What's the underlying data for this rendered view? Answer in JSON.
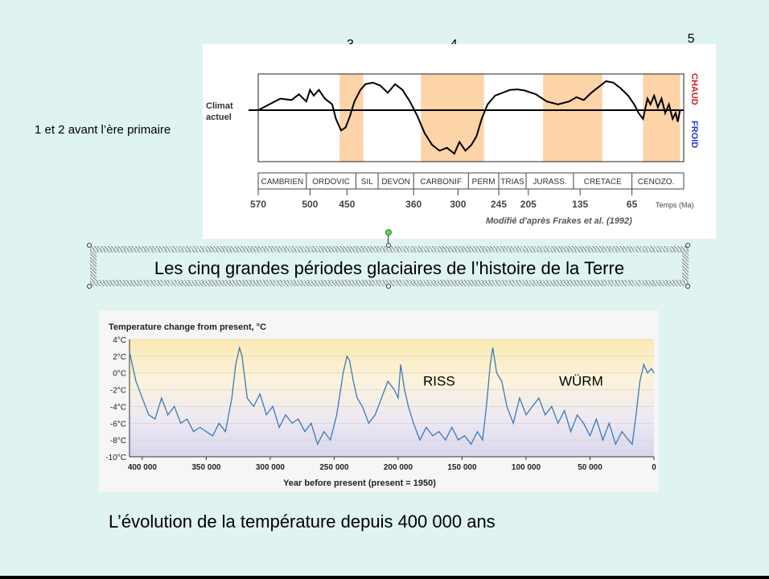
{
  "side_note": "1 et 2 avant l’ère primaire",
  "caption_top": "Les cinq grandes périodes glaciaires de l’histoire de la Terre",
  "caption_bottom": "L’évolution de la température depuis 400 000 ans",
  "periods_markers": [
    {
      "label": "3",
      "start_ma": 460,
      "end_ma": 430
    },
    {
      "label": "4",
      "start_ma": 350,
      "end_ma": 260
    },
    {
      "label": "5",
      "start_ma": 4,
      "end_ma": -35
    }
  ],
  "colors": {
    "background": "#dff3f1",
    "glacial_band": "#fdd3a8",
    "chaud": "#d11f2a",
    "froid": "#2a37c9",
    "temp_line": "#3a7ab8"
  },
  "chart_data": [
    {
      "type": "line",
      "title": "",
      "ylabel_left": "Climat actuel",
      "xlabel": "Temps (Ma)",
      "y_right_labels": {
        "top": "CHAUD",
        "bottom": "FROID"
      },
      "source": "Modifié d'après Frakes et al. (1992)",
      "xlim": [
        570,
        -5
      ],
      "x_ticks": [
        570,
        500,
        450,
        360,
        300,
        245,
        205,
        135,
        65
      ],
      "geologic_periods": [
        "CAMBRIEN",
        "ORDOVIC",
        "SIL",
        "DEVON",
        "CARBONIF",
        "PERM",
        "TRIAS",
        "JURASS.",
        "CRETACE",
        "CENOZO."
      ],
      "period_bounds_ma": [
        570,
        505,
        438,
        408,
        360,
        286,
        245,
        208,
        144,
        65,
        0
      ],
      "glacial_bands_ma": [
        [
          460,
          428
        ],
        [
          350,
          265
        ],
        [
          185,
          105
        ],
        [
          50,
          0
        ]
      ],
      "series": [
        {
          "x": [
            570,
            555,
            540,
            525,
            515,
            505,
            500,
            495,
            488,
            480,
            475,
            470,
            465,
            458,
            452,
            446,
            440,
            432,
            425,
            415,
            405,
            395,
            385,
            375,
            365,
            355,
            345,
            335,
            325,
            315,
            305,
            298,
            290,
            282,
            275,
            268,
            260,
            250,
            240,
            230,
            220,
            210,
            195,
            180,
            165,
            150,
            140,
            130,
            120,
            110,
            100,
            90,
            80,
            70,
            62,
            56,
            50,
            44,
            40,
            35,
            30,
            25,
            20,
            15,
            10,
            6,
            3,
            0
          ],
          "y": [
            0,
            0.2,
            0.4,
            0.35,
            0.55,
            0.3,
            0.7,
            0.5,
            0.7,
            0.4,
            0.3,
            0.2,
            -0.3,
            -0.7,
            -0.6,
            -0.2,
            0.3,
            0.7,
            0.9,
            0.95,
            0.85,
            0.6,
            0.9,
            0.7,
            0.3,
            -0.2,
            -0.8,
            -1.2,
            -1.4,
            -1.3,
            -1.5,
            -1.1,
            -1.4,
            -1.2,
            -0.9,
            -0.3,
            0.2,
            0.5,
            0.6,
            0.7,
            0.72,
            0.68,
            0.55,
            0.3,
            0.2,
            0.3,
            0.45,
            0.35,
            0.6,
            0.8,
            1.0,
            0.95,
            0.75,
            0.5,
            0.2,
            -0.1,
            -0.3,
            0.4,
            0.2,
            0.5,
            0.1,
            0.4,
            -0.1,
            0.2,
            -0.3,
            -0.1,
            -0.4,
            0
          ]
        }
      ]
    },
    {
      "type": "line",
      "title": "Temperature change from present, °C",
      "xlabel": "Year before present (present = 1950)",
      "ylabel": "",
      "xlim": [
        410000,
        0
      ],
      "ylim": [
        -10,
        4
      ],
      "x_ticks": [
        400000,
        350000,
        300000,
        250000,
        200000,
        150000,
        100000,
        50000,
        0
      ],
      "x_tick_labels": [
        "400 000",
        "350 000",
        "300 000",
        "250 000",
        "200 000",
        "150 000",
        "100 000",
        "50 000",
        "0"
      ],
      "y_ticks": [
        4,
        2,
        0,
        -2,
        -4,
        -6,
        -8,
        -10
      ],
      "y_tick_labels": [
        "4°C",
        "2°C",
        "0°C",
        "-2°C",
        "-4°C",
        "-6°C",
        "-8°C",
        "-10°C"
      ],
      "annotations": [
        {
          "text": "RISS",
          "x": 168000,
          "y": -1.5
        },
        {
          "text": "WÜRM",
          "x": 57000,
          "y": -1.5
        }
      ],
      "series": [
        {
          "x": [
            410000,
            405000,
            400000,
            395000,
            390000,
            385000,
            380000,
            375000,
            370000,
            365000,
            360000,
            355000,
            350000,
            345000,
            340000,
            335000,
            330000,
            327000,
            324000,
            322000,
            318000,
            313000,
            308000,
            303000,
            298000,
            293000,
            288000,
            283000,
            278000,
            273000,
            268000,
            263000,
            258000,
            253000,
            248000,
            243000,
            240000,
            238000,
            235000,
            232000,
            228000,
            223000,
            218000,
            213000,
            208000,
            203000,
            200000,
            198000,
            195000,
            192000,
            188000,
            183000,
            178000,
            173000,
            168000,
            163000,
            158000,
            153000,
            148000,
            143000,
            138000,
            134000,
            131000,
            128000,
            126000,
            123000,
            119000,
            115000,
            110000,
            105000,
            100000,
            95000,
            90000,
            85000,
            80000,
            75000,
            70000,
            65000,
            60000,
            55000,
            50000,
            45000,
            40000,
            35000,
            30000,
            25000,
            20000,
            17000,
            14000,
            11000,
            8000,
            5000,
            2000,
            0
          ],
          "y": [
            2.5,
            -1,
            -3,
            -5,
            -5.5,
            -3,
            -5,
            -4,
            -6,
            -5.5,
            -7,
            -6.5,
            -7,
            -7.5,
            -6,
            -7,
            -3,
            1,
            3,
            2,
            -3,
            -4,
            -2.5,
            -5,
            -4,
            -6.5,
            -5,
            -6,
            -5.5,
            -7,
            -6,
            -8.5,
            -7,
            -8,
            -5,
            0,
            2,
            1.5,
            -1,
            -3,
            -4,
            -6,
            -5,
            -3,
            -1,
            -2,
            -3,
            1,
            -2,
            -4,
            -6,
            -8,
            -6.5,
            -7.5,
            -7,
            -8,
            -6.5,
            -8,
            -7.5,
            -8.5,
            -7,
            -8,
            -4,
            1,
            3,
            0,
            -1,
            -4,
            -6,
            -3,
            -5,
            -4,
            -3,
            -5,
            -4,
            -6,
            -4.5,
            -7,
            -5,
            -6,
            -7.5,
            -5.5,
            -8,
            -6,
            -8.5,
            -7,
            -8,
            -8.5,
            -5,
            -1,
            1,
            0,
            0.5,
            0
          ]
        }
      ]
    }
  ]
}
